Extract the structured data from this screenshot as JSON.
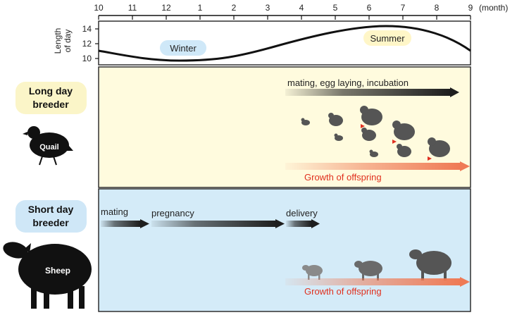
{
  "axis": {
    "month_ticks": [
      "10",
      "11",
      "12",
      "1",
      "2",
      "3",
      "4",
      "5",
      "6",
      "7",
      "8",
      "9"
    ],
    "unit_label": "(month)"
  },
  "day_length": {
    "ylabel_line1": "Length",
    "ylabel_line2": "of day",
    "y_ticks": [
      "14",
      "12",
      "10"
    ],
    "winter_label": "Winter",
    "summer_label": "Summer"
  },
  "long_day": {
    "label_line1": "Long day",
    "label_line2": "breeder",
    "animal_label": "Quail",
    "activity_label": "mating, egg laying, incubation",
    "growth_label": "Growth of offspring"
  },
  "short_day": {
    "label_line1": "Short day",
    "label_line2": "breeder",
    "animal_label": "Sheep",
    "mating_label": "mating",
    "pregnancy_label": "pregnancy",
    "delivery_label": "delivery",
    "growth_label": "Growth of offspring"
  },
  "colors": {
    "long_day_bg": "#fffbde",
    "short_day_bg": "#d4ebf8",
    "winter_badge": "#cfe8f8",
    "summer_badge": "#fff6c8",
    "long_day_badge": "#fbf5c8",
    "short_day_badge": "#cfe7f7",
    "growth_text": "#e0301e",
    "growth_arrow": "#ef7a55"
  }
}
